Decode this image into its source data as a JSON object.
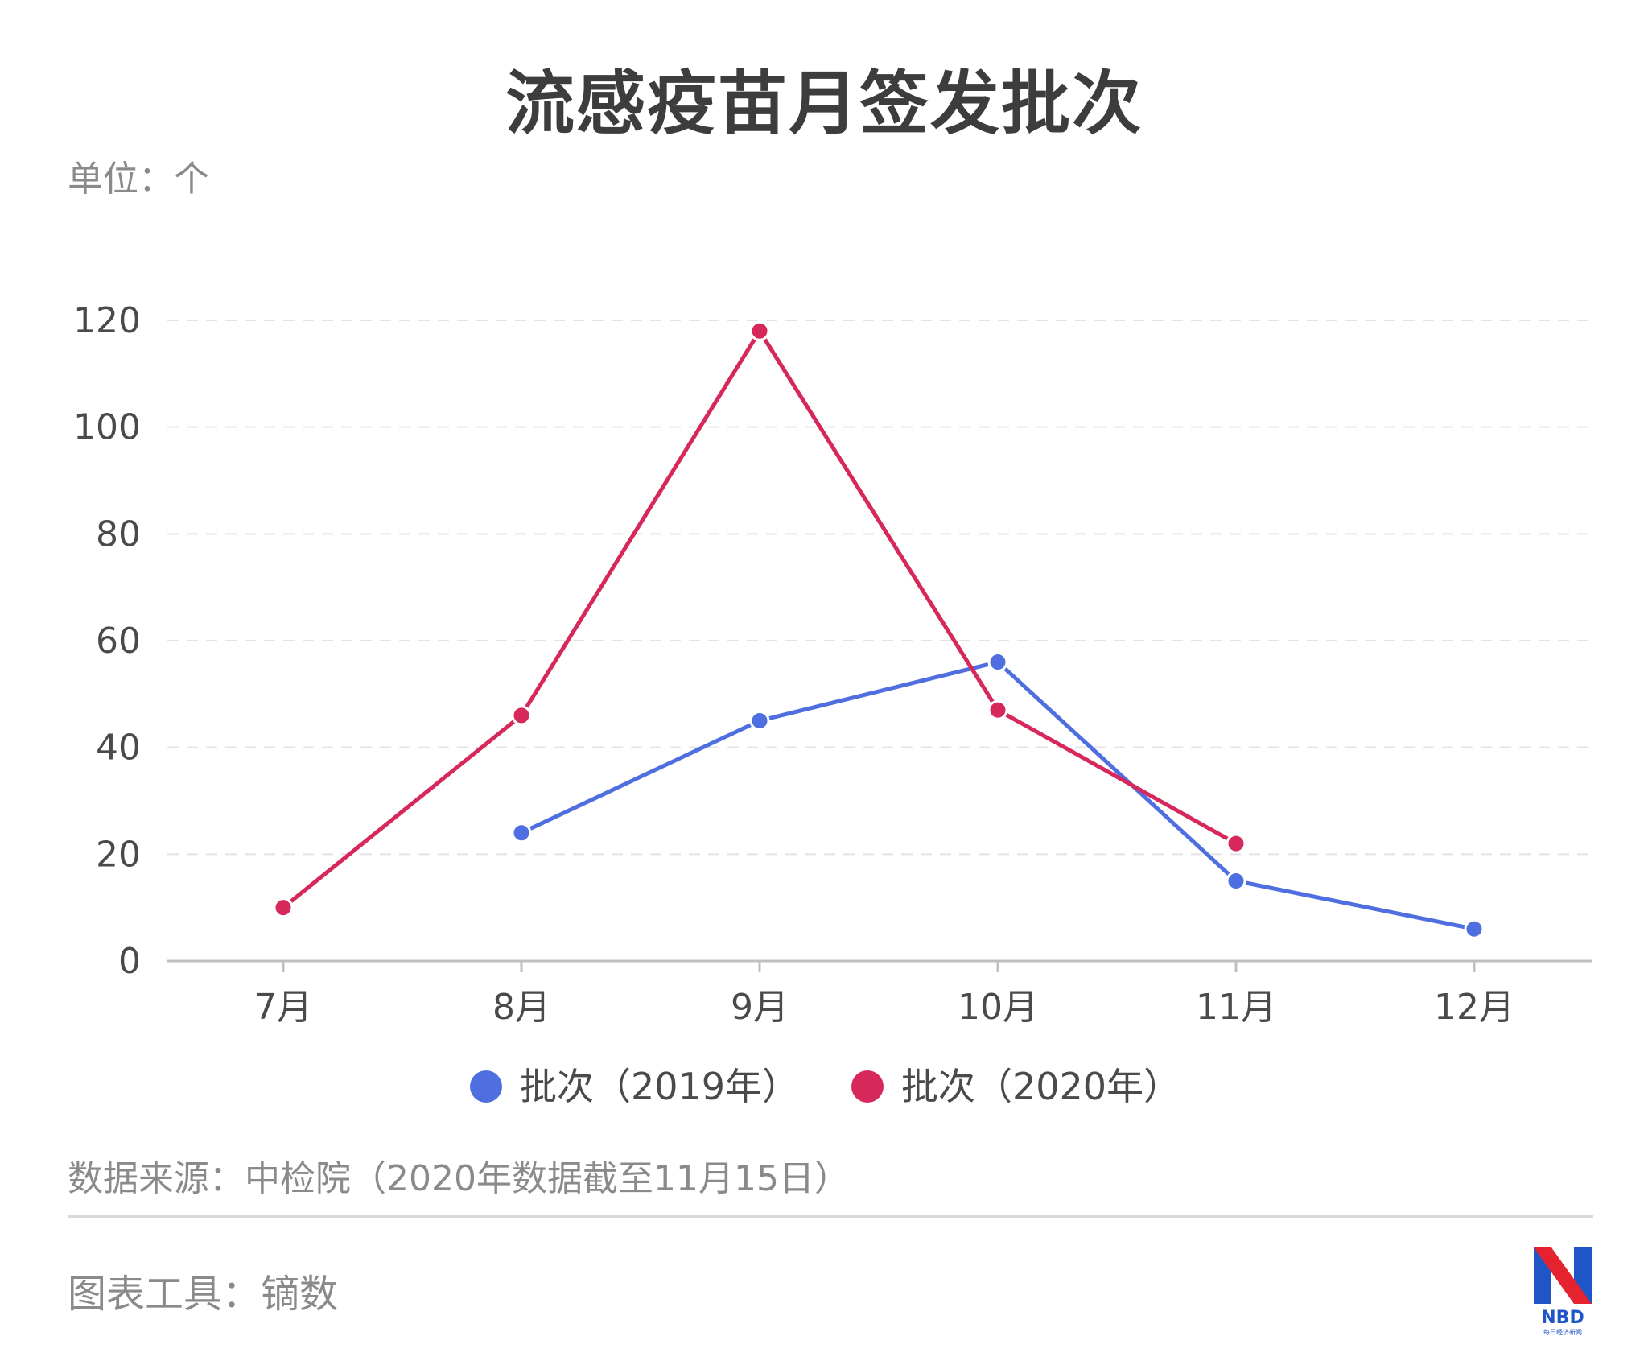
{
  "title": "流感疫苗月签发批次",
  "unit": "单位：个",
  "source": "数据来源：中检院（2020年数据截至11月15日）",
  "tool": "图表工具：镝数",
  "logo": {
    "text": "NBD",
    "subtext": "每日经济新闻"
  },
  "chart_data": {
    "type": "line",
    "categories": [
      "7月",
      "8月",
      "9月",
      "10月",
      "11月",
      "12月"
    ],
    "ylim": [
      0,
      120
    ],
    "yticks": [
      0,
      20,
      40,
      60,
      80,
      100,
      120
    ],
    "grid": true,
    "legend_position": "bottom",
    "series": [
      {
        "name": "批次（2019年）",
        "color": "#4f6fe0",
        "values": [
          null,
          24,
          45,
          56,
          15,
          6
        ]
      },
      {
        "name": "批次（2020年）",
        "color": "#d6285a",
        "values": [
          10,
          46,
          118,
          47,
          22,
          null
        ]
      }
    ]
  }
}
